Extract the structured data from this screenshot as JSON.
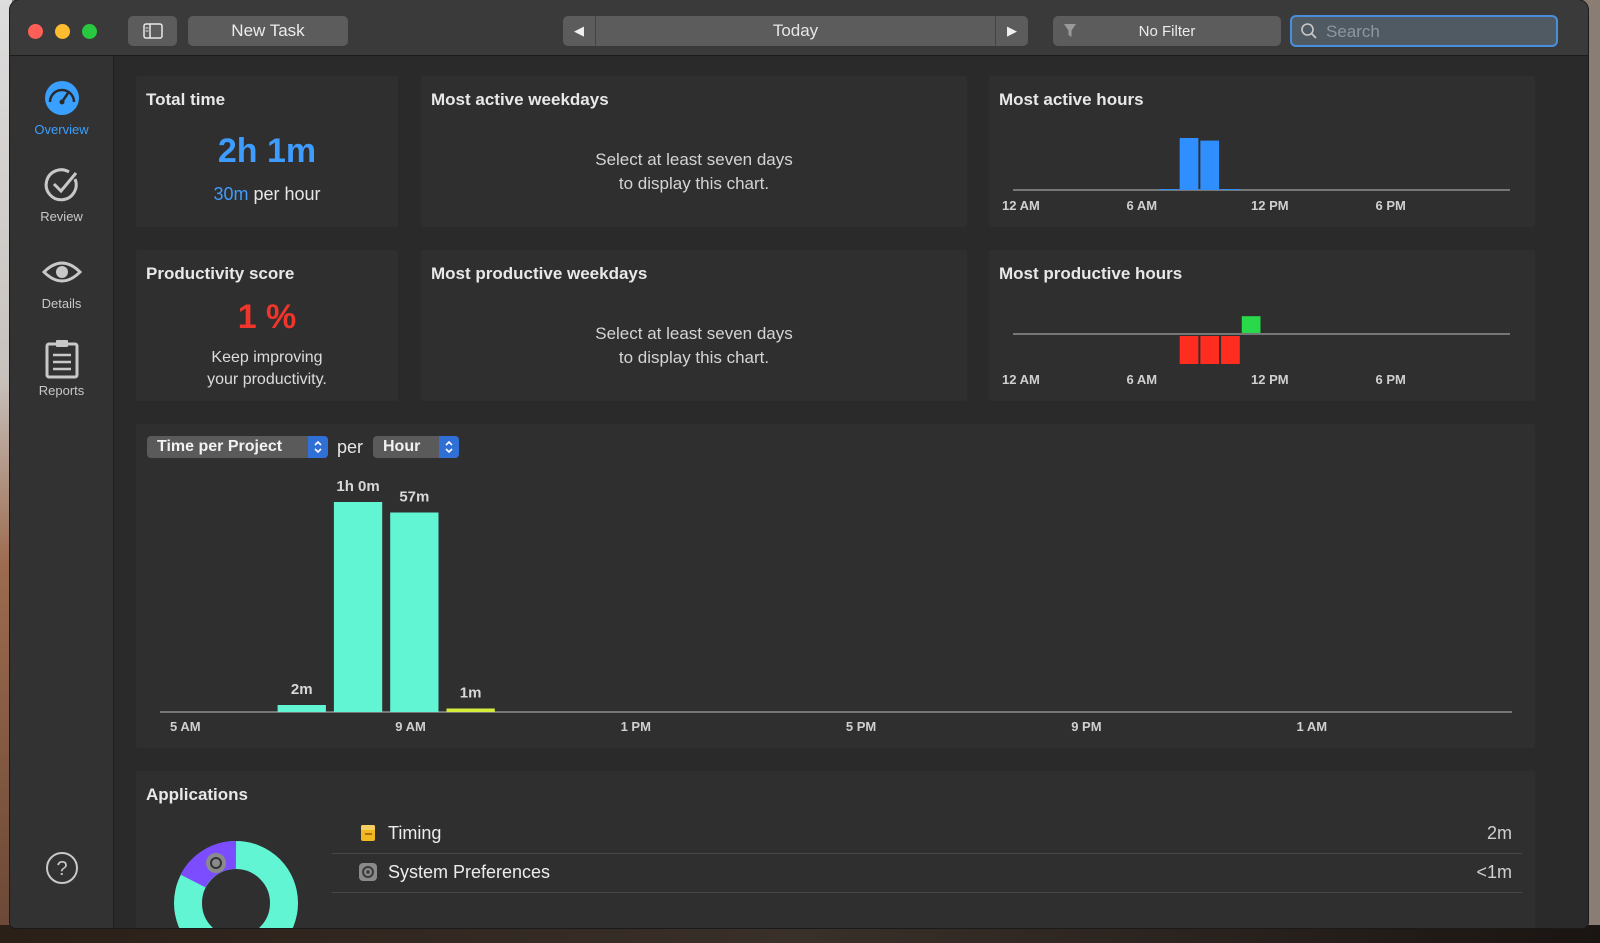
{
  "toolbar": {
    "new_task_label": "New Task",
    "date_label": "Today",
    "filter_label": "No Filter",
    "search_placeholder": "Search"
  },
  "sidebar": {
    "items": [
      {
        "label": "Overview",
        "icon": "speedometer-icon",
        "active": true
      },
      {
        "label": "Review",
        "icon": "checkmark-circle-icon",
        "active": false
      },
      {
        "label": "Details",
        "icon": "eye-icon",
        "active": false
      },
      {
        "label": "Reports",
        "icon": "clipboard-icon",
        "active": false
      }
    ],
    "help_icon": "question-circle-icon"
  },
  "cards": {
    "total_time": {
      "title": "Total time",
      "value": "2h 1m",
      "per_hour_value": "30m",
      "per_hour_suffix": "per hour"
    },
    "active_weekdays": {
      "title": "Most active weekdays",
      "message_line1": "Select at least seven days",
      "message_line2": "to display this chart."
    },
    "active_hours": {
      "title": "Most active hours",
      "ticks": [
        "12 AM",
        "6 AM",
        "12 PM",
        "6 PM"
      ]
    },
    "productivity": {
      "title": "Productivity score",
      "value": "1 %",
      "message_line1": "Keep improving",
      "message_line2": "your productivity."
    },
    "productive_weekdays": {
      "title": "Most productive weekdays",
      "message_line1": "Select at least seven days",
      "message_line2": "to display this chart."
    },
    "productive_hours": {
      "title": "Most productive hours",
      "ticks": [
        "12 AM",
        "6 AM",
        "12 PM",
        "6 PM"
      ]
    }
  },
  "time_chart": {
    "metric_select": "Time per Project",
    "per_label": "per",
    "unit_select": "Hour"
  },
  "chart_data": [
    {
      "type": "bar",
      "title": "Most active hours",
      "x_ticks": [
        "12 AM",
        "6 AM",
        "12 PM",
        "6 PM"
      ],
      "hours": [
        7,
        8,
        9,
        10,
        11
      ],
      "values": [
        1,
        60,
        57,
        1,
        0
      ],
      "colors": {
        "bar": "#2f8fff"
      }
    },
    {
      "type": "bar",
      "title": "Most productive hours",
      "x_ticks": [
        "12 AM",
        "6 AM",
        "12 PM",
        "6 PM"
      ],
      "hours": [
        8,
        9,
        10,
        11
      ],
      "values": [
        -1,
        -1,
        -1,
        0.6
      ],
      "colors": {
        "negative": "#ff2d1f",
        "positive": "#29d94a"
      }
    },
    {
      "type": "bar",
      "x_ticks": [
        "5 AM",
        "9 AM",
        "1 PM",
        "5 PM",
        "9 PM",
        "1 AM"
      ],
      "hours": [
        7,
        8,
        9,
        10
      ],
      "values": [
        2,
        60,
        57,
        1
      ],
      "labels": [
        "2m",
        "1h 0m",
        "57m",
        "1m"
      ],
      "bar_colors": [
        "#62f5d4",
        "#62f5d4",
        "#62f5d4",
        "#d6ec3a"
      ]
    }
  ],
  "applications": {
    "title": "Applications",
    "rows": [
      {
        "name": "Timing",
        "time": "2m",
        "icon": "timing-app-icon"
      },
      {
        "name": "System Preferences",
        "time": "<1m",
        "icon": "gear-icon"
      }
    ]
  }
}
